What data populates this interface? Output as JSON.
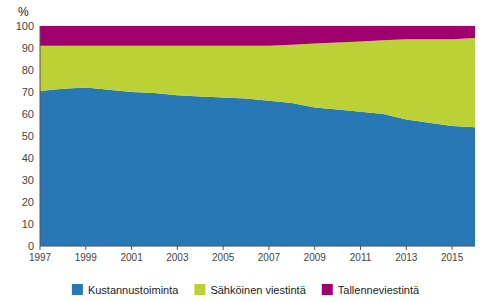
{
  "chart_data": {
    "type": "area",
    "stacked": true,
    "ylabel": "%",
    "x": [
      1997,
      1998,
      1999,
      2000,
      2001,
      2002,
      2003,
      2004,
      2005,
      2006,
      2007,
      2008,
      2009,
      2010,
      2011,
      2012,
      2013,
      2014,
      2015,
      2016
    ],
    "series": [
      {
        "name": "Kustannustoiminta",
        "color": "#2878b5",
        "values": [
          70.5,
          71.5,
          72.0,
          71.0,
          70.0,
          69.5,
          68.5,
          68.0,
          67.5,
          67.0,
          66.0,
          65.0,
          63.0,
          62.0,
          61.0,
          60.0,
          57.5,
          56.0,
          54.5,
          54.0
        ]
      },
      {
        "name": "Sähköinen viestintä",
        "color": "#bcd135",
        "values": [
          20.5,
          19.5,
          19.0,
          20.0,
          21.0,
          21.5,
          22.5,
          23.0,
          23.5,
          24.0,
          25.0,
          26.5,
          29.0,
          30.5,
          32.0,
          33.5,
          36.5,
          38.0,
          39.5,
          40.5
        ]
      },
      {
        "name": "Tallenneviestintä",
        "color": "#a0006e",
        "values": [
          9.0,
          9.0,
          9.0,
          9.0,
          9.0,
          9.0,
          9.0,
          9.0,
          9.0,
          9.0,
          9.0,
          8.5,
          8.0,
          7.5,
          7.0,
          6.5,
          6.0,
          6.0,
          6.0,
          5.5
        ]
      }
    ],
    "xlim": [
      1997,
      2016
    ],
    "ylim": [
      0,
      100
    ],
    "xticks": [
      1997,
      1999,
      2001,
      2003,
      2005,
      2007,
      2009,
      2011,
      2013,
      2015
    ],
    "yticks": [
      0,
      10,
      20,
      30,
      40,
      50,
      60,
      70,
      80,
      90,
      100
    ],
    "grid": true,
    "legend": "bottom"
  }
}
